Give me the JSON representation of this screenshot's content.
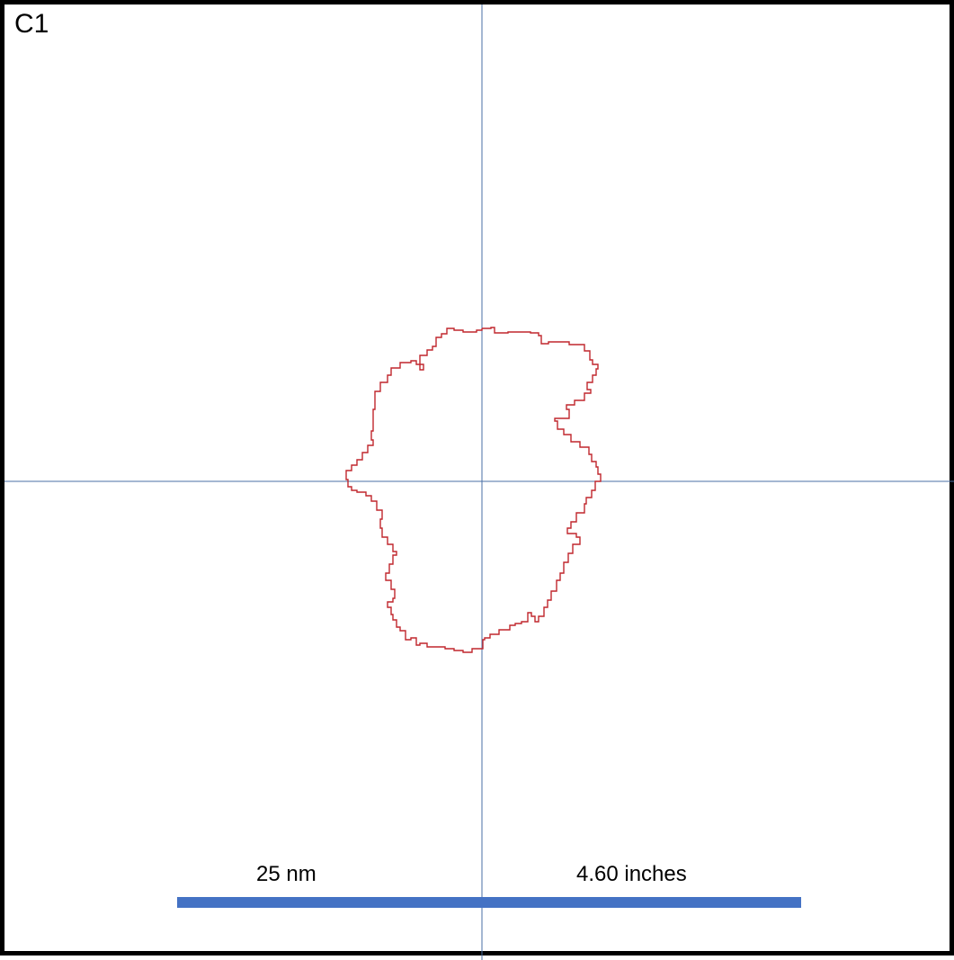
{
  "panel": {
    "label": "C1"
  },
  "colors": {
    "frame": "#000000",
    "crosshair": "#4a6fa5",
    "outline": "#c0272d",
    "scale_bar": "#4472c4"
  },
  "scale_bar": {
    "length_label_nm": "25 nm",
    "length_label_inches": "4.60 inches"
  }
}
